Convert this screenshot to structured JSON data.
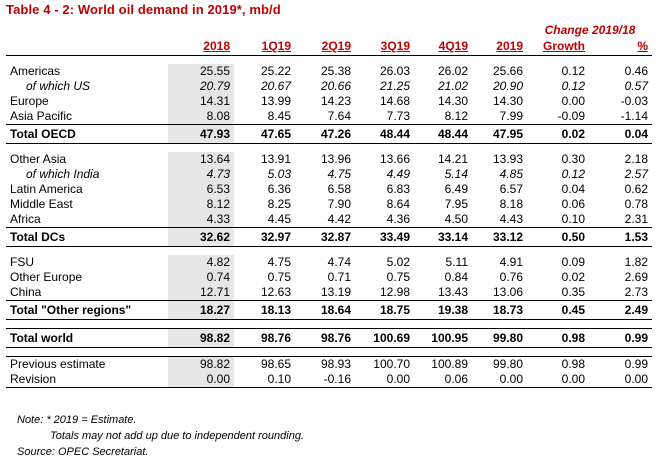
{
  "title": "Table 4 - 2: World oil demand in 2019*, mb/d",
  "change_header": "Change 2019/18",
  "columns": [
    "2018",
    "1Q19",
    "2Q19",
    "3Q19",
    "4Q19",
    "2019",
    "Growth",
    "%"
  ],
  "rows": [
    {
      "label": "Americas",
      "values": [
        "25.55",
        "25.22",
        "25.38",
        "26.03",
        "26.02",
        "25.66",
        "0.12",
        "0.46"
      ],
      "style": "normal"
    },
    {
      "label": "of which US",
      "values": [
        "20.79",
        "20.67",
        "20.66",
        "21.25",
        "21.02",
        "20.90",
        "0.12",
        "0.57"
      ],
      "style": "italic"
    },
    {
      "label": "Europe",
      "values": [
        "14.31",
        "13.99",
        "14.23",
        "14.68",
        "14.30",
        "14.30",
        "0.00",
        "-0.03"
      ],
      "style": "normal"
    },
    {
      "label": "Asia Pacific",
      "values": [
        "8.08",
        "8.45",
        "7.64",
        "7.73",
        "8.12",
        "7.99",
        "-0.09",
        "-1.14"
      ],
      "style": "normal"
    },
    {
      "label": "Total OECD",
      "values": [
        "47.93",
        "47.65",
        "47.26",
        "48.44",
        "48.44",
        "47.95",
        "0.02",
        "0.04"
      ],
      "style": "total"
    },
    {
      "label": "Other Asia",
      "values": [
        "13.64",
        "13.91",
        "13.96",
        "13.66",
        "14.21",
        "13.93",
        "0.30",
        "2.18"
      ],
      "style": "normal"
    },
    {
      "label": "of which India",
      "values": [
        "4.73",
        "5.03",
        "4.75",
        "4.49",
        "5.14",
        "4.85",
        "0.12",
        "2.57"
      ],
      "style": "italic"
    },
    {
      "label": "Latin America",
      "values": [
        "6.53",
        "6.36",
        "6.58",
        "6.83",
        "6.49",
        "6.57",
        "0.04",
        "0.62"
      ],
      "style": "normal"
    },
    {
      "label": "Middle East",
      "values": [
        "8.12",
        "8.25",
        "7.90",
        "8.64",
        "7.95",
        "8.18",
        "0.06",
        "0.78"
      ],
      "style": "normal"
    },
    {
      "label": "Africa",
      "values": [
        "4.33",
        "4.45",
        "4.42",
        "4.36",
        "4.50",
        "4.43",
        "0.10",
        "2.31"
      ],
      "style": "normal"
    },
    {
      "label": "Total DCs",
      "values": [
        "32.62",
        "32.97",
        "32.87",
        "33.49",
        "33.14",
        "33.12",
        "0.50",
        "1.53"
      ],
      "style": "total"
    },
    {
      "label": "FSU",
      "values": [
        "4.82",
        "4.75",
        "4.74",
        "5.02",
        "5.11",
        "4.91",
        "0.09",
        "1.82"
      ],
      "style": "normal"
    },
    {
      "label": "Other Europe",
      "values": [
        "0.74",
        "0.75",
        "0.71",
        "0.75",
        "0.84",
        "0.76",
        "0.02",
        "2.69"
      ],
      "style": "normal"
    },
    {
      "label": "China",
      "values": [
        "12.71",
        "12.63",
        "13.19",
        "12.98",
        "13.43",
        "13.06",
        "0.35",
        "2.73"
      ],
      "style": "normal"
    },
    {
      "label": "Total \"Other regions\"",
      "values": [
        "18.27",
        "18.13",
        "18.64",
        "18.75",
        "19.38",
        "18.73",
        "0.45",
        "2.49"
      ],
      "style": "total"
    },
    {
      "label": "Total world",
      "values": [
        "98.82",
        "98.76",
        "98.76",
        "100.69",
        "100.95",
        "99.80",
        "0.98",
        "0.99"
      ],
      "style": "total"
    },
    {
      "label": "Previous estimate",
      "values": [
        "98.82",
        "98.65",
        "98.93",
        "100.70",
        "100.89",
        "99.80",
        "0.98",
        "0.99"
      ],
      "style": "normal"
    },
    {
      "label": "Revision",
      "values": [
        "0.00",
        "0.10",
        "-0.16",
        "0.00",
        "0.06",
        "0.00",
        "0.00",
        "0.00"
      ],
      "style": "normal"
    }
  ],
  "notes": [
    "Note: * 2019 = Estimate.",
    "Totals may not add up due to independent rounding.",
    "Source: OPEC Secretariat."
  ]
}
